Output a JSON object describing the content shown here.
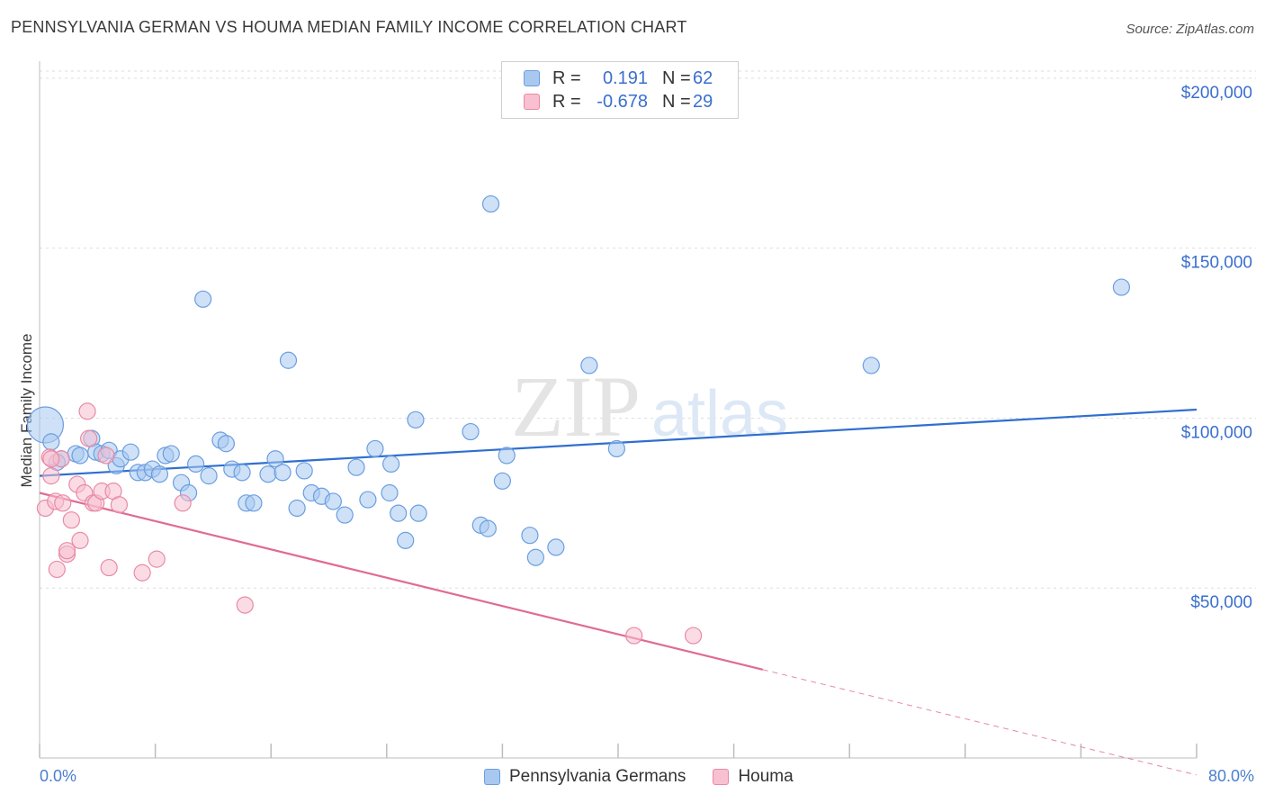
{
  "header": {
    "title": "PENNSYLVANIA GERMAN VS HOUMA MEDIAN FAMILY INCOME CORRELATION CHART",
    "source": "Source: ZipAtlas.com"
  },
  "watermark": {
    "zip": "ZIP",
    "atlas": "atlas"
  },
  "legend": {
    "rows": [
      {
        "r_label": "R =",
        "r_value": "0.191",
        "n_label": "N =",
        "n_value": "62",
        "color": "#a8c8f0",
        "border": "#6a9ee0"
      },
      {
        "r_label": "R =",
        "r_value": "-0.678",
        "n_label": "N =",
        "n_value": "29",
        "color": "#f8c0d0",
        "border": "#e88aa6"
      }
    ]
  },
  "bottom_legend": [
    {
      "label": "Pennsylvania Germans",
      "color": "#a8c8f0",
      "border": "#6a9ee0"
    },
    {
      "label": "Houma",
      "color": "#f8c0d0",
      "border": "#e88aa6"
    }
  ],
  "chart_data": {
    "type": "scatter",
    "title": "PENNSYLVANIA GERMAN VS HOUMA MEDIAN FAMILY INCOME CORRELATION CHART",
    "xlabel": "",
    "ylabel": "Median Family Income",
    "xlim": [
      0,
      80
    ],
    "ylim": [
      0,
      205000
    ],
    "x_tick_labels": {
      "min": "0.0%",
      "max": "80.0%"
    },
    "y_ticks": [
      {
        "value": 50000,
        "label": "$50,000"
      },
      {
        "value": 100000,
        "label": "$100,000"
      },
      {
        "value": 150000,
        "label": "$150,000"
      },
      {
        "value": 200000,
        "label": "$200,000"
      }
    ],
    "grid": true,
    "series": [
      {
        "name": "Pennsylvania Germans",
        "color": "#a8c8f0",
        "stroke": "#6a9ee0",
        "trend": {
          "x0": 0,
          "y0": 83000,
          "x1": 80,
          "y1": 102500,
          "color": "#2f6fcf"
        },
        "points": [
          [
            0.4,
            98000,
            "large"
          ],
          [
            0.8,
            93000
          ],
          [
            1.5,
            88000
          ],
          [
            1.2,
            87000
          ],
          [
            2.5,
            89500
          ],
          [
            2.8,
            89000
          ],
          [
            3.6,
            94000
          ],
          [
            3.9,
            90000
          ],
          [
            4.3,
            89500
          ],
          [
            4.8,
            90500
          ],
          [
            5.3,
            86000
          ],
          [
            5.6,
            88000
          ],
          [
            6.3,
            90000
          ],
          [
            6.8,
            84000
          ],
          [
            7.3,
            84000
          ],
          [
            7.8,
            85000
          ],
          [
            8.3,
            83500
          ],
          [
            8.7,
            89000
          ],
          [
            9.1,
            89500
          ],
          [
            9.8,
            81000
          ],
          [
            10.3,
            78000
          ],
          [
            10.8,
            86500
          ],
          [
            11.3,
            135000
          ],
          [
            11.7,
            83000
          ],
          [
            12.5,
            93500
          ],
          [
            12.9,
            92500
          ],
          [
            13.3,
            85000
          ],
          [
            14.0,
            84000
          ],
          [
            14.3,
            75000
          ],
          [
            14.8,
            75000
          ],
          [
            15.8,
            83500
          ],
          [
            16.3,
            88000
          ],
          [
            16.8,
            84000
          ],
          [
            17.2,
            117000
          ],
          [
            17.8,
            73500
          ],
          [
            18.3,
            84500
          ],
          [
            18.8,
            78000
          ],
          [
            19.5,
            77000
          ],
          [
            20.3,
            75500
          ],
          [
            21.1,
            71500
          ],
          [
            21.9,
            85500
          ],
          [
            22.7,
            76000
          ],
          [
            23.2,
            91000
          ],
          [
            24.2,
            78000
          ],
          [
            24.3,
            86500
          ],
          [
            24.8,
            72000
          ],
          [
            25.3,
            64000
          ],
          [
            26.0,
            99500
          ],
          [
            26.2,
            72000
          ],
          [
            29.8,
            96000
          ],
          [
            30.5,
            68500
          ],
          [
            31.0,
            67500
          ],
          [
            31.2,
            163000
          ],
          [
            32.0,
            81500
          ],
          [
            32.3,
            89000
          ],
          [
            33.9,
            65500
          ],
          [
            34.3,
            59000
          ],
          [
            35.7,
            62000
          ],
          [
            38.0,
            115500
          ],
          [
            39.9,
            91000
          ],
          [
            57.5,
            115500
          ],
          [
            74.8,
            138500
          ]
        ]
      },
      {
        "name": "Houma",
        "color": "#f8c0d0",
        "stroke": "#e88aa6",
        "trend": {
          "x0": 0,
          "y0": 78000,
          "x1": 50,
          "y1": 26000,
          "dash_x1": 80,
          "dash_y1": -5000,
          "color": "#e06b93"
        },
        "points": [
          [
            0.4,
            73500
          ],
          [
            0.7,
            88500
          ],
          [
            0.8,
            83000
          ],
          [
            1.1,
            75500
          ],
          [
            1.2,
            55500
          ],
          [
            1.5,
            88000
          ],
          [
            1.6,
            75000
          ],
          [
            1.9,
            60000
          ],
          [
            1.9,
            61000
          ],
          [
            2.2,
            70000
          ],
          [
            2.6,
            80500
          ],
          [
            2.8,
            64000
          ],
          [
            3.1,
            78000
          ],
          [
            3.3,
            102000
          ],
          [
            3.4,
            94000
          ],
          [
            3.7,
            75000
          ],
          [
            3.9,
            75000
          ],
          [
            4.3,
            78500
          ],
          [
            4.6,
            89000
          ],
          [
            4.8,
            56000
          ],
          [
            5.1,
            78500
          ],
          [
            5.5,
            74500
          ],
          [
            7.1,
            54500
          ],
          [
            8.1,
            58500
          ],
          [
            9.9,
            75000
          ],
          [
            14.2,
            45000
          ],
          [
            41.1,
            36000
          ],
          [
            45.2,
            36000
          ],
          [
            0.8,
            88000
          ]
        ]
      }
    ]
  }
}
